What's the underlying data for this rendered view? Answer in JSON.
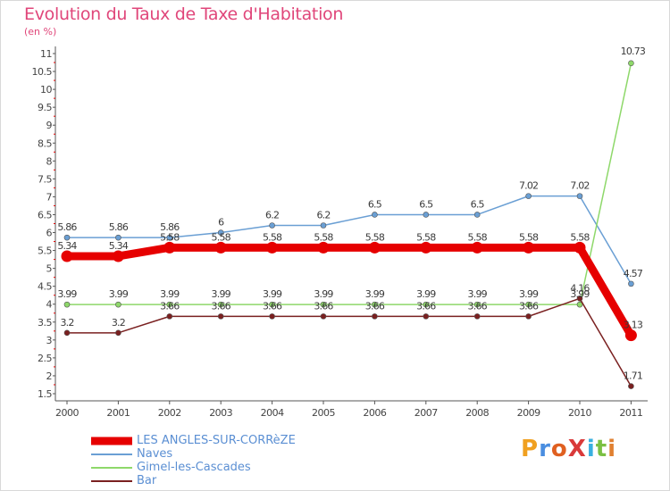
{
  "title": "Evolution du Taux de Taxe d'Habitation",
  "subtitle": "(en %)",
  "logo_text": "ProXiti",
  "chart_data": {
    "type": "line",
    "title": "Evolution du Taux de Taxe d'Habitation",
    "ylabel": "(en %)",
    "xlabel": "",
    "ylim": [
      1.5,
      11
    ],
    "yticks": [
      "1.5",
      "2",
      "2.5",
      "3",
      "3.5",
      "4",
      "4.5",
      "5",
      "5.5",
      "6",
      "6.5",
      "7",
      "7.5",
      "8",
      "8.5",
      "9",
      "9.5",
      "10",
      "10.5",
      "11"
    ],
    "categories": [
      "2000",
      "2001",
      "2002",
      "2003",
      "2004",
      "2005",
      "2006",
      "2007",
      "2008",
      "2009",
      "2010",
      "2011"
    ],
    "grid": false,
    "legend_position": "bottom-left",
    "series": [
      {
        "name": "LES ANGLES-SUR-CORRèZE",
        "color": "#e60000",
        "values": [
          5.34,
          5.34,
          5.58,
          5.58,
          5.58,
          5.58,
          5.58,
          5.58,
          5.58,
          5.58,
          5.58,
          3.13
        ],
        "labels": [
          "5.34",
          "5.34",
          "5.58",
          "5.58",
          "5.58",
          "5.58",
          "5.58",
          "5.58",
          "5.58",
          "5.58",
          "5.58",
          "3.13"
        ]
      },
      {
        "name": "Naves",
        "color": "#6a9fd4",
        "values": [
          5.86,
          5.86,
          5.86,
          6,
          6.2,
          6.2,
          6.5,
          6.5,
          6.5,
          7.02,
          7.02,
          4.57
        ],
        "labels": [
          "5.86",
          "5.86",
          "5.86",
          "6",
          "6.2",
          "6.2",
          "6.5",
          "6.5",
          "6.5",
          "7.02",
          "7.02",
          "4.57"
        ]
      },
      {
        "name": "Gimel-les-Cascades",
        "color": "#8ed86a",
        "values": [
          3.99,
          3.99,
          3.99,
          3.99,
          3.99,
          3.99,
          3.99,
          3.99,
          3.99,
          3.99,
          3.99,
          10.73
        ],
        "labels": [
          "3.99",
          "3.99",
          "3.99",
          "3.99",
          "3.99",
          "3.99",
          "3.99",
          "3.99",
          "3.99",
          "3.99",
          "3.99",
          "10.73"
        ]
      },
      {
        "name": "Bar",
        "color": "#7a2020",
        "values": [
          3.2,
          3.2,
          3.66,
          3.66,
          3.66,
          3.66,
          3.66,
          3.66,
          3.66,
          3.66,
          4.16,
          1.71
        ],
        "labels": [
          "3.2",
          "3.2",
          "3.66",
          "3.66",
          "3.66",
          "3.66",
          "3.66",
          "3.66",
          "3.66",
          "3.66",
          "4.16",
          "1.71"
        ]
      }
    ]
  }
}
